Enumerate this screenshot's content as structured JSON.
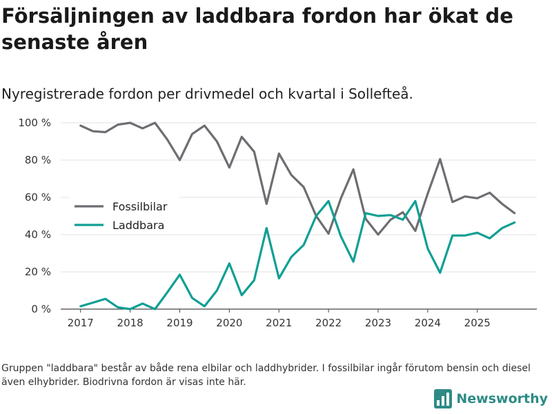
{
  "title": "Försäljningen av laddbara fordon har ökat de senaste åren",
  "subtitle": "Nyregistrerade fordon per drivmedel och kvartal i Sollefteå.",
  "footnote": "Gruppen \"laddbara\" består av både rena elbilar och laddhybrider. I fossilbilar ingår förutom bensin och diesel även elhybrider. Biodrivna fordon är visas inte här.",
  "brand": {
    "name": "Newsworthy",
    "icon": "bar-chart-logo-icon",
    "color": "#2d8b86"
  },
  "chart_data": {
    "type": "line",
    "title": "Försäljningen av laddbara fordon har ökat de senaste åren",
    "xlabel": "",
    "ylabel": "",
    "x_ticks": [
      "2017",
      "2018",
      "2019",
      "2020",
      "2021",
      "2022",
      "2023",
      "2024",
      "2025"
    ],
    "y_ticks": [
      "0 %",
      "20 %",
      "40 %",
      "60 %",
      "80 %",
      "100 %"
    ],
    "ylim": [
      0,
      100
    ],
    "xlim": [
      2016.6,
      2026.2
    ],
    "grid": true,
    "legend_position": "left",
    "quarters": [
      2017.0,
      2017.25,
      2017.5,
      2017.75,
      2018.0,
      2018.25,
      2018.5,
      2018.75,
      2019.0,
      2019.25,
      2019.5,
      2019.75,
      2020.0,
      2020.25,
      2020.5,
      2020.75,
      2021.0,
      2021.25,
      2021.5,
      2021.75,
      2022.0,
      2022.25,
      2022.5,
      2022.75,
      2023.0,
      2023.25,
      2023.5,
      2023.75,
      2024.0,
      2024.25,
      2024.5,
      2024.75,
      2025.0,
      2025.25,
      2025.5,
      2025.75
    ],
    "series": [
      {
        "name": "Fossilbilar",
        "color": "#6d6d72",
        "values": [
          98.5,
          95.5,
          95,
          99,
          100,
          97,
          100,
          91,
          80,
          94,
          98.5,
          90,
          76,
          92.5,
          84.5,
          56.5,
          83.5,
          72,
          65.5,
          50,
          40.5,
          59.5,
          75,
          48.5,
          40,
          48,
          52,
          42,
          62,
          80.5,
          57.5,
          60.5,
          59.5,
          62.5,
          56.5,
          51.5
        ]
      },
      {
        "name": "Laddbara",
        "color": "#109f94",
        "values": [
          1.5,
          3.5,
          5.5,
          1,
          0,
          3,
          0,
          9,
          18.5,
          6,
          1.5,
          10,
          24.5,
          7.5,
          15.5,
          43.5,
          16.5,
          28,
          34.5,
          50,
          58,
          39,
          25.5,
          51.5,
          50,
          50.5,
          48,
          58,
          32.5,
          19.5,
          39.5,
          39.5,
          41,
          38,
          43.5,
          46.5
        ]
      }
    ]
  }
}
